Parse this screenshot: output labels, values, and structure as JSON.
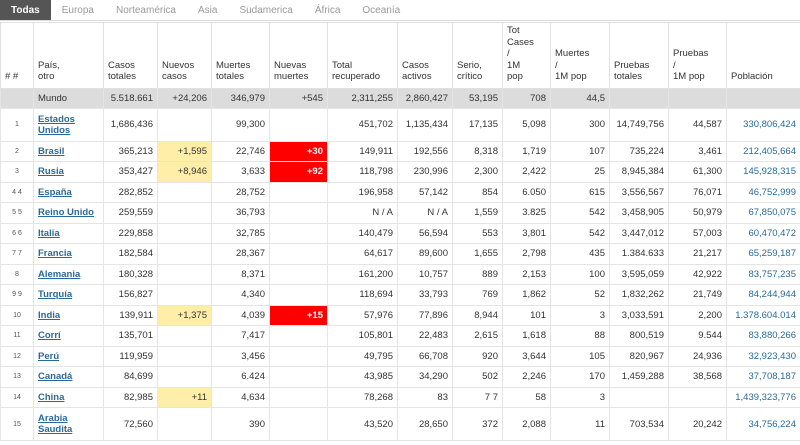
{
  "tabs": [
    "Todas",
    "Europa",
    "Norteamérica",
    "Asia",
    "Sudamerica",
    "África",
    "Oceanía"
  ],
  "table": {
    "headers": [
      "# #",
      "País,\notro",
      "Casos\ntotales",
      "Nuevos\ncasos",
      "Muertes\ntotales",
      "Nuevas\nmuertes",
      "Total\nrecuperado",
      "Casos\nactivos",
      "Serio,\ncrítico",
      "Tot\nCases\n/\n1M\npop",
      "Muertes\n/\n1M pop",
      "Pruebas\ntotales",
      "Pruebas\n/\n1M pop",
      "Población"
    ],
    "rows": [
      [
        null,
        "Mundo",
        "5.518.661",
        "+24,206",
        "346,979",
        "+545",
        "2,311,255",
        "2,860,427",
        "53,195",
        "708",
        "44,5",
        null,
        null,
        null
      ],
      [
        "1",
        "Estados Unidos",
        "1,686,436",
        null,
        "99,300",
        null,
        "451,702",
        "1,135,434",
        "17,135",
        "5,098",
        "300",
        "14,749,756",
        "44,587",
        "330,806,424"
      ],
      [
        "2",
        "Brasil",
        "365,213",
        "+1,595",
        "22,746",
        "+30",
        "149,911",
        "192,556",
        "8,318",
        "1,719",
        "107",
        "735,224",
        "3,461",
        "212,405,664"
      ],
      [
        "3",
        "Rusia",
        "353,427",
        "+8,946",
        "3,633",
        "+92",
        "118,798",
        "230,996",
        "2,300",
        "2,422",
        "25",
        "8,945,384",
        "61,300",
        "145,928,315"
      ],
      [
        "4 4",
        "España",
        "282,852",
        null,
        "28,752",
        null,
        "196,958",
        "57,142",
        "854",
        "6.050",
        "615",
        "3,556,567",
        "76,071",
        "46,752,999"
      ],
      [
        "5 5",
        "Reino Unido",
        "259,559",
        null,
        "36,793",
        null,
        "N / A",
        "N / A",
        "1,559",
        "3.825",
        "542",
        "3,458,905",
        "50,979",
        "67,850,075"
      ],
      [
        "6 6",
        "Italia",
        "229,858",
        null,
        "32,785",
        null,
        "140,479",
        "56,594",
        "553",
        "3,801",
        "542",
        "3,447,012",
        "57,003",
        "60,470,472"
      ],
      [
        "7 7",
        "Francia",
        "182,584",
        null,
        "28,367",
        null,
        "64,617",
        "89,600",
        "1,655",
        "2,798",
        "435",
        "1.384.633",
        "21,217",
        "65,259,187"
      ],
      [
        "8",
        "Alemania",
        "180,328",
        null,
        "8,371",
        null,
        "161,200",
        "10,757",
        "889",
        "2,153",
        "100",
        "3,595,059",
        "42,922",
        "83,757,235"
      ],
      [
        "9 9",
        "Turquía",
        "156,827",
        null,
        "4,340",
        null,
        "118,694",
        "33,793",
        "769",
        "1,862",
        "52",
        "1,832,262",
        "21,749",
        "84,244,944"
      ],
      [
        "10",
        "India",
        "139,911",
        "+1,375",
        "4,039",
        "+15",
        "57,976",
        "77,896",
        "8,944",
        "101",
        "3",
        "3,033,591",
        "2,200",
        "1.378.604.014"
      ],
      [
        "11",
        "Corrí",
        "135,701",
        null,
        "7,417",
        null,
        "105,801",
        "22,483",
        "2,615",
        "1,618",
        "88",
        "800,519",
        "9.544",
        "83,880,266"
      ],
      [
        "12",
        "Perú",
        "119,959",
        null,
        "3,456",
        null,
        "49,795",
        "66,708",
        "920",
        "3,644",
        "105",
        "820,967",
        "24,936",
        "32,923,430"
      ],
      [
        "13",
        "Canadá",
        "84,699",
        null,
        "6.424",
        null,
        "43,985",
        "34,290",
        "502",
        "2,246",
        "170",
        "1,459,288",
        "38,568",
        "37,708,187"
      ],
      [
        "14",
        "China",
        "82,985",
        "+11",
        "4,634",
        null,
        "78,268",
        "83",
        "7 7",
        "58",
        "3",
        null,
        null,
        "1,439,323,776"
      ],
      [
        "15",
        "Arabia Saudita",
        "72,560",
        null,
        "390",
        null,
        "43,520",
        "28,650",
        "372",
        "2,088",
        "11",
        "703,534",
        "20,242",
        "34,756,224"
      ]
    ]
  }
}
